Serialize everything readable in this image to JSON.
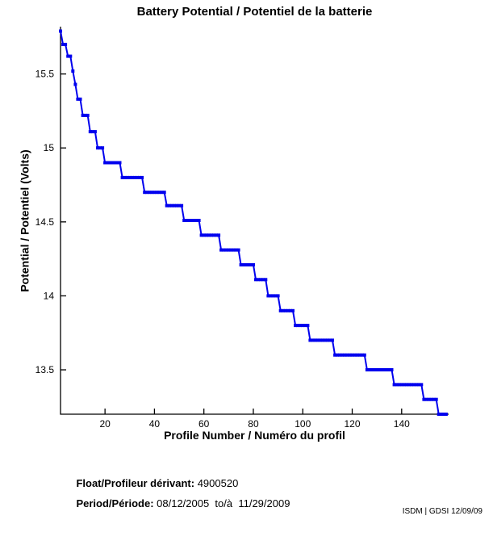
{
  "title": "Battery Potential / Potentiel de la batterie",
  "annotations": {
    "float_label": "Float/Profileur dérivant:",
    "float_value": " 4900520",
    "period_label": "Period/Période:",
    "period_value": " 08/12/2005  to/à  11/29/2009"
  },
  "watermark": "ISDM | GDSI 12/09/09",
  "chart_data": {
    "type": "line",
    "style": "stepped-line-with-point-markers",
    "title": "Battery Potential / Potentiel de la batterie",
    "xlabel": "Profile Number / Numéro du profil",
    "ylabel": "Potential / Potentiel (Volts)",
    "xlim": [
      2,
      159
    ],
    "ylim": [
      13.2,
      15.82
    ],
    "xticks": [
      20,
      40,
      60,
      80,
      100,
      120,
      140
    ],
    "yticks": [
      13.5,
      14,
      14.5,
      15,
      15.5
    ],
    "grid": false,
    "legend": "none",
    "line_color": "#0000EE",
    "axis_color": "#000000",
    "marker": "square-dot",
    "steps": [
      {
        "from": 2,
        "to": 2,
        "v": 15.79
      },
      {
        "from": 3,
        "to": 4,
        "v": 15.7
      },
      {
        "from": 5,
        "to": 6,
        "v": 15.62
      },
      {
        "from": 7,
        "to": 7,
        "v": 15.52
      },
      {
        "from": 8,
        "to": 8,
        "v": 15.43
      },
      {
        "from": 9,
        "to": 10,
        "v": 15.33
      },
      {
        "from": 11,
        "to": 13,
        "v": 15.22
      },
      {
        "from": 14,
        "to": 16,
        "v": 15.11
      },
      {
        "from": 17,
        "to": 19,
        "v": 15.0
      },
      {
        "from": 20,
        "to": 26,
        "v": 14.9
      },
      {
        "from": 27,
        "to": 35,
        "v": 14.8
      },
      {
        "from": 36,
        "to": 44,
        "v": 14.7
      },
      {
        "from": 45,
        "to": 51,
        "v": 14.61
      },
      {
        "from": 52,
        "to": 58,
        "v": 14.51
      },
      {
        "from": 59,
        "to": 66,
        "v": 14.41
      },
      {
        "from": 67,
        "to": 74,
        "v": 14.31
      },
      {
        "from": 75,
        "to": 80,
        "v": 14.21
      },
      {
        "from": 81,
        "to": 85,
        "v": 14.11
      },
      {
        "from": 86,
        "to": 90,
        "v": 14.0
      },
      {
        "from": 91,
        "to": 96,
        "v": 13.9
      },
      {
        "from": 97,
        "to": 102,
        "v": 13.8
      },
      {
        "from": 103,
        "to": 112,
        "v": 13.7
      },
      {
        "from": 113,
        "to": 125,
        "v": 13.6
      },
      {
        "from": 126,
        "to": 136,
        "v": 13.5
      },
      {
        "from": 137,
        "to": 148,
        "v": 13.4
      },
      {
        "from": 149,
        "to": 154,
        "v": 13.3
      },
      {
        "from": 155,
        "to": 158,
        "v": 13.2
      }
    ]
  }
}
